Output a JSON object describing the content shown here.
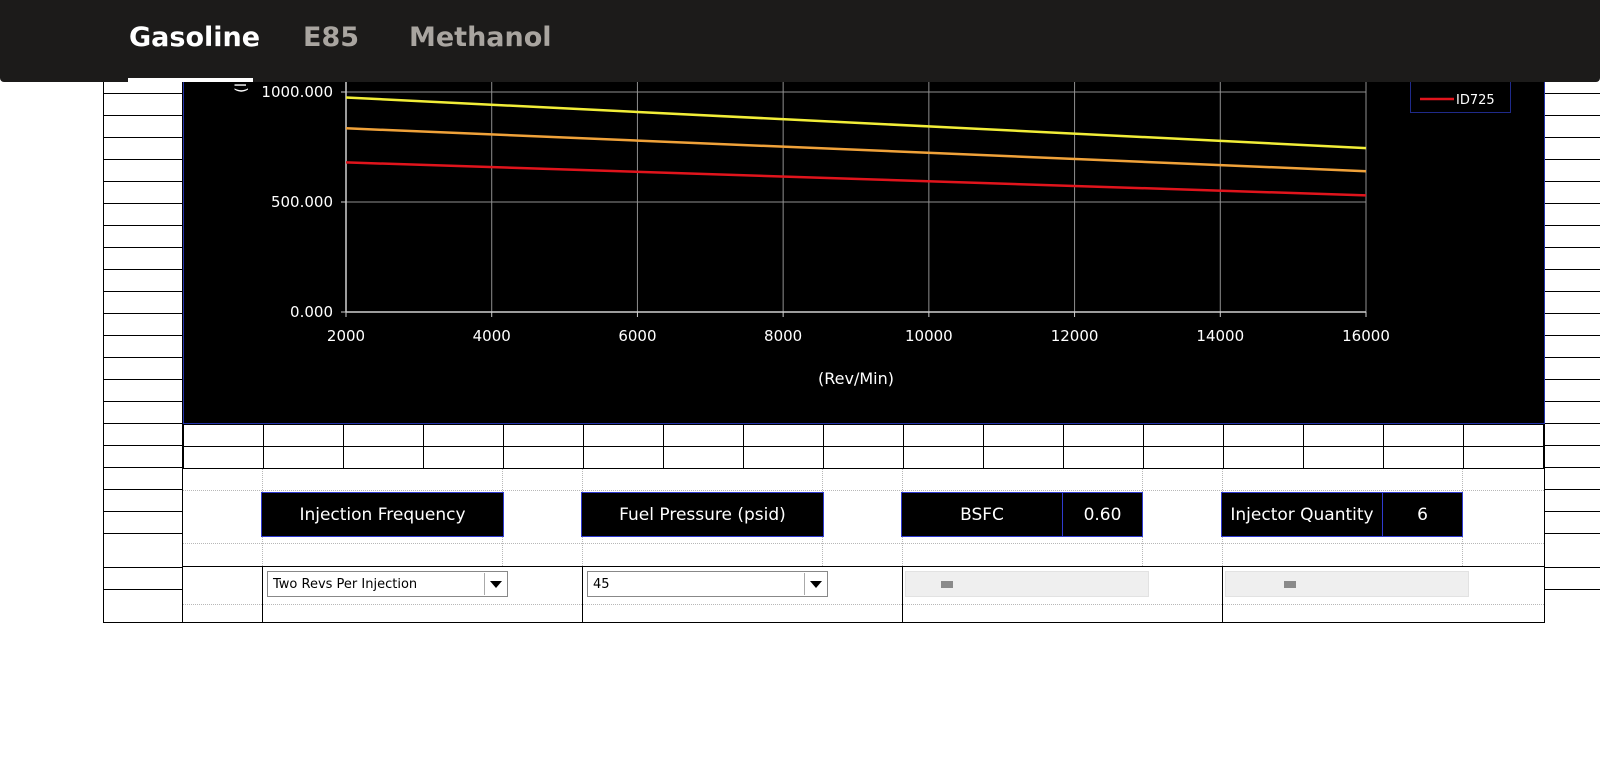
{
  "tabs": [
    {
      "label": "Gasoline",
      "active": true
    },
    {
      "label": "E85",
      "active": false
    },
    {
      "label": "Methanol",
      "active": false
    }
  ],
  "chart_data": {
    "type": "line",
    "title": "",
    "xlabel": "(Rev/Min)",
    "ylabel": "(l",
    "x": [
      2000,
      16000
    ],
    "xlim": [
      2000,
      16000
    ],
    "ylim": [
      0,
      1000
    ],
    "xticks": [
      "2000",
      "4000",
      "6000",
      "8000",
      "10000",
      "12000",
      "14000",
      "16000"
    ],
    "yticks": [
      "0.000",
      "500.000",
      "1000.000"
    ],
    "grid": true,
    "legend_position": "top-right",
    "series": [
      {
        "name": "",
        "color": "#f2ee38",
        "values": [
          975,
          745
        ]
      },
      {
        "name": "",
        "color": "#f0a23a",
        "values": [
          835,
          640
        ]
      },
      {
        "name": "ID725",
        "color": "#e0141c",
        "values": [
          680,
          530
        ]
      }
    ]
  },
  "params": {
    "injection_frequency_label": "Injection Frequency",
    "fuel_pressure_label": "Fuel Pressure (psid)",
    "bsfc_label": "BSFC",
    "bsfc_value": "0.60",
    "injector_quantity_label": "Injector Quantity",
    "injector_quantity_value": "6"
  },
  "controls": {
    "injection_frequency_selected": "Two Revs Per Injection",
    "fuel_pressure_selected": "45",
    "bsfc_slider_value": 0.15,
    "injector_quantity_slider_value": 0.25
  },
  "colors": {
    "topbar": "#1c1b1a",
    "tab_inactive": "#a9a5a0",
    "tab_active": "#ffffff",
    "box_border": "#2f3bd0"
  }
}
